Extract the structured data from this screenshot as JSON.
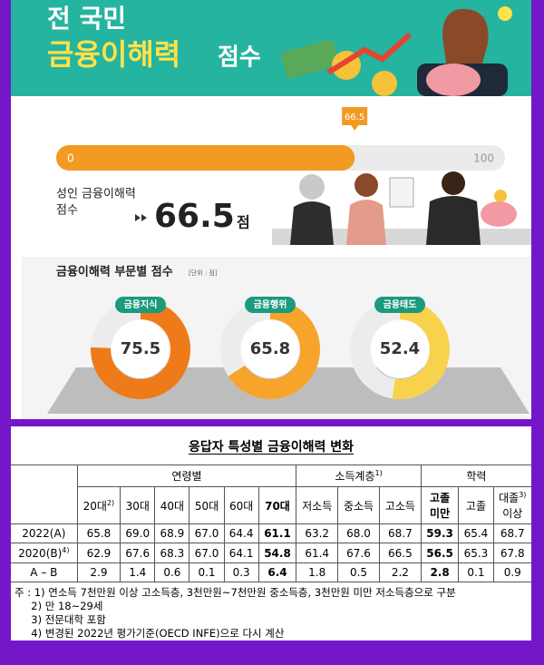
{
  "header": {
    "title_line1": "전 국민",
    "title_line2": "금융이해력",
    "title_suffix": "점수"
  },
  "gauge": {
    "value": 66.5,
    "min": 0,
    "max": 100
  },
  "score": {
    "label_line1": "성인 금융이해력",
    "label_line2": "점수",
    "unit": "점"
  },
  "sections": {
    "title": "금융이해력 부문별 점수",
    "unit": "[단위 : 점]",
    "items": [
      {
        "name": "금융지식",
        "value": 75.5,
        "color": "#ee7a19"
      },
      {
        "name": "금융행위",
        "value": 65.8,
        "color": "#f6a42a"
      },
      {
        "name": "금융태도",
        "value": 52.4,
        "color": "#f8d24c"
      }
    ]
  },
  "table": {
    "title": "응답자 특성별 금융이해력 변화",
    "groups": [
      {
        "text": "연령별"
      },
      {
        "text": "소득계층",
        "note": "1)"
      },
      {
        "text": "학력"
      }
    ],
    "columns": [
      {
        "text": "20대",
        "note": "2)"
      },
      {
        "text": "30대"
      },
      {
        "text": "40대"
      },
      {
        "text": "50대"
      },
      {
        "text": "60대"
      },
      {
        "text": "70대"
      },
      {
        "text": "저소득"
      },
      {
        "text": "중소득"
      },
      {
        "text": "고소득"
      },
      {
        "text": "고졸",
        "text2": "미만"
      },
      {
        "text": "고졸"
      },
      {
        "text": "대졸",
        "note": "3)",
        "text2": "이상"
      }
    ],
    "rows": [
      {
        "label": "2022(A)",
        "values": [
          "65.8",
          "69.0",
          "68.9",
          "67.0",
          "64.4",
          "61.1",
          "63.2",
          "68.0",
          "68.7",
          "59.3",
          "65.4",
          "68.7"
        ]
      },
      {
        "label": "2020(B)",
        "note": "4)",
        "values": [
          "62.9",
          "67.6",
          "68.3",
          "67.0",
          "64.1",
          "54.8",
          "61.4",
          "67.6",
          "66.5",
          "56.5",
          "65.3",
          "67.8"
        ]
      },
      {
        "label": "A – B",
        "values": [
          "2.9",
          "1.4",
          "0.6",
          "0.1",
          "0.3",
          "6.4",
          "1.8",
          "0.5",
          "2.2",
          "2.8",
          "0.1",
          "0.9"
        ]
      }
    ],
    "notes_prefix": "주 :",
    "notes": [
      "1)  연소득 7천만원 이상 고소득층, 3천만원~7천만원 중소득층, 3천만원 미만 저소득층으로 구분",
      "2)  만 18~29세",
      "3)  전문대학 포함",
      "4)  변경된 2022년 평가기준(OECD INFE)으로 다시 계산"
    ]
  }
}
